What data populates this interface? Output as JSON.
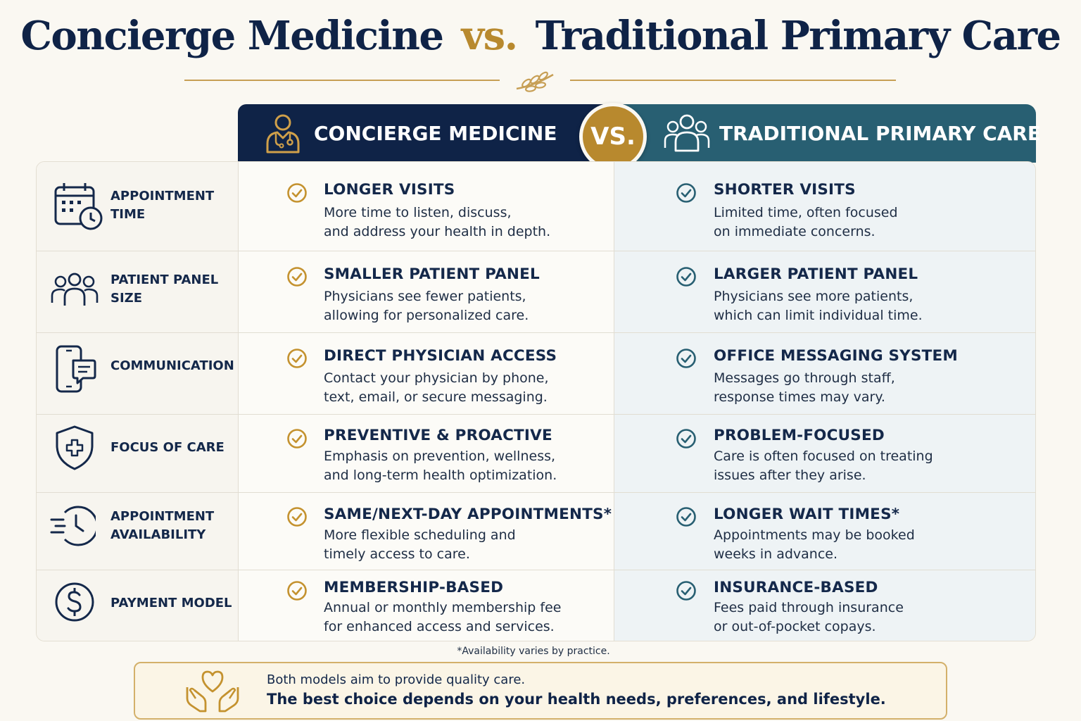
{
  "title": {
    "left": "Concierge Medicine",
    "vs": "vs.",
    "right": "Traditional Primary Care"
  },
  "header": {
    "concierge": "CONCIERGE MEDICINE",
    "vs": "VS.",
    "traditional": "TRADITIONAL PRIMARY CARE"
  },
  "rows": [
    {
      "icon": "calendar-clock-icon",
      "label": "APPOINTMENT\nTIME",
      "concierge_title": "LONGER VISITS",
      "concierge_desc": "More time to listen, discuss,\nand address your health in depth.",
      "traditional_title": "SHORTER VISITS",
      "traditional_desc": "Limited time, often focused\non immediate concerns."
    },
    {
      "icon": "people-icon",
      "label": "PATIENT PANEL\nSIZE",
      "concierge_title": "SMALLER PATIENT PANEL",
      "concierge_desc": "Physicians see fewer patients,\nallowing for personalized care.",
      "traditional_title": "LARGER PATIENT PANEL",
      "traditional_desc": "Physicians see more patients,\nwhich can limit individual time."
    },
    {
      "icon": "phone-message-icon",
      "label": "COMMUNICATION",
      "concierge_title": "DIRECT PHYSICIAN ACCESS",
      "concierge_desc": "Contact your physician by phone,\ntext, email, or secure messaging.",
      "traditional_title": "OFFICE MESSAGING SYSTEM",
      "traditional_desc": "Messages go through staff,\nresponse times may vary."
    },
    {
      "icon": "shield-cross-icon",
      "label": "FOCUS OF CARE",
      "concierge_title": "PREVENTIVE & PROACTIVE",
      "concierge_desc": "Emphasis on prevention, wellness,\nand long-term health optimization.",
      "traditional_title": "PROBLEM-FOCUSED",
      "traditional_desc": "Care is often focused on treating\nissues after they arise."
    },
    {
      "icon": "fast-clock-icon",
      "label": "APPOINTMENT\nAVAILABILITY",
      "concierge_title": "SAME/NEXT-DAY APPOINTMENTS*",
      "concierge_desc": "More flexible scheduling and\ntimely access to care.",
      "traditional_title": "LONGER WAIT TIMES*",
      "traditional_desc": "Appointments may be booked\nweeks in advance."
    },
    {
      "icon": "dollar-circle-icon",
      "label": "PAYMENT MODEL",
      "concierge_title": "MEMBERSHIP-BASED",
      "concierge_desc": "Annual or monthly membership fee\nfor enhanced access and services.",
      "traditional_title": "INSURANCE-BASED",
      "traditional_desc": "Fees paid through insurance\nor out-of-pocket copays."
    }
  ],
  "footnote": "*Availability varies by practice.",
  "bottom": {
    "line1": "Both models aim to provide quality care.",
    "line2": "The best choice depends on your health needs, preferences, and lifestyle."
  },
  "colors": {
    "navy": "#0f2347",
    "gold": "#b8892e",
    "teal": "#285f72",
    "background": "#faf8f2"
  }
}
